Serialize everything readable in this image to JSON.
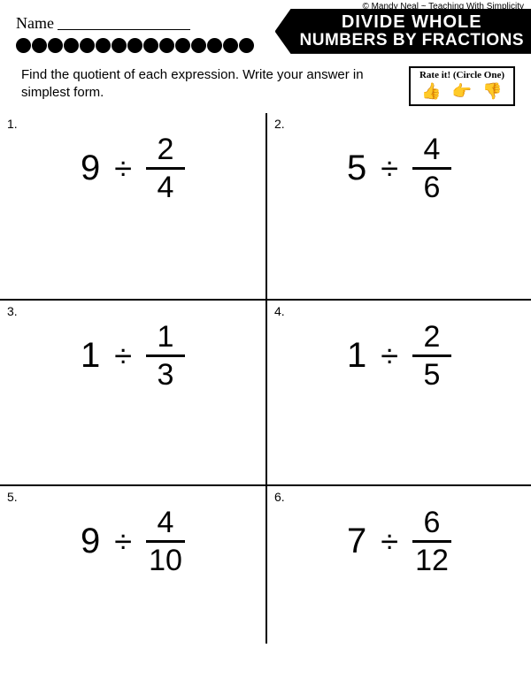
{
  "copyright": "© Mandy Neal ~ Teaching With Simplicity",
  "name_label": "Name",
  "title": {
    "line1": "DIVIDE WHOLE",
    "line2": "NUMBERS BY FRACTIONS"
  },
  "instructions": "Find the quotient of each expression. Write your answer in simplest form.",
  "rate": {
    "label": "Rate it! (Circle One)",
    "icons": [
      "👍",
      "👉",
      "👎"
    ]
  },
  "dots_count": 15,
  "problems": [
    {
      "n": "1.",
      "whole": "9",
      "num": "2",
      "den": "4"
    },
    {
      "n": "2.",
      "whole": "5",
      "num": "4",
      "den": "6"
    },
    {
      "n": "3.",
      "whole": "1",
      "num": "1",
      "den": "3"
    },
    {
      "n": "4.",
      "whole": "1",
      "num": "2",
      "den": "5"
    },
    {
      "n": "5.",
      "whole": "9",
      "num": "4",
      "den": "10"
    },
    {
      "n": "6.",
      "whole": "7",
      "num": "6",
      "den": "12"
    }
  ],
  "divide_sym": "÷",
  "colors": {
    "bg": "#ffffff",
    "fg": "#000000"
  }
}
